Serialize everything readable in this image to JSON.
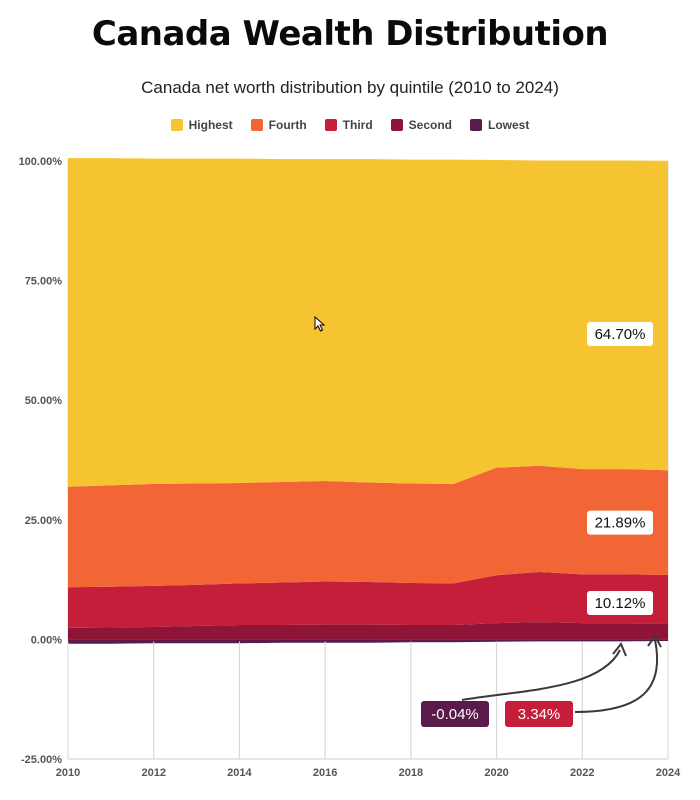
{
  "header": {
    "title": "Canada Wealth Distribution",
    "subtitle": "Canada net worth distribution by quintile (2010 to 2024)"
  },
  "chart_data": {
    "type": "area",
    "stacked": true,
    "x": [
      2010,
      2011,
      2012,
      2013,
      2014,
      2015,
      2016,
      2017,
      2018,
      2019,
      2020,
      2021,
      2022,
      2023,
      2024
    ],
    "x_ticks": [
      "2010",
      "2012",
      "2014",
      "2016",
      "2018",
      "2020",
      "2022",
      "2024"
    ],
    "y_ticks": [
      "100.00%",
      "75.00%",
      "50.00%",
      "25.00%",
      "0.00%",
      "-25.00%"
    ],
    "ylim": [
      -25,
      100
    ],
    "grid": "vertical",
    "legend_position": "top-center",
    "series": [
      {
        "name": "Lowest",
        "color": "#5a1a4a",
        "values": [
          -0.6,
          -0.6,
          -0.5,
          -0.5,
          -0.5,
          -0.4,
          -0.4,
          -0.4,
          -0.3,
          -0.3,
          -0.2,
          -0.1,
          -0.1,
          -0.1,
          -0.04
        ]
      },
      {
        "name": "Second",
        "color": "#8e1538",
        "values": [
          2.4,
          2.5,
          2.6,
          2.8,
          3.0,
          3.0,
          3.1,
          3.1,
          3.0,
          3.0,
          3.4,
          3.6,
          3.4,
          3.4,
          3.34
        ]
      },
      {
        "name": "Third",
        "color": "#c41e3a",
        "values": [
          8.5,
          8.5,
          8.6,
          8.6,
          8.7,
          8.9,
          9.0,
          8.9,
          8.8,
          8.7,
          10.0,
          10.5,
          10.2,
          10.2,
          10.12
        ]
      },
      {
        "name": "Fourth",
        "color": "#f26535",
        "values": [
          21.0,
          21.2,
          21.3,
          21.2,
          21.0,
          21.0,
          21.0,
          20.8,
          20.8,
          20.8,
          22.5,
          22.2,
          22.0,
          22.0,
          21.89
        ]
      },
      {
        "name": "Highest",
        "color": "#f6c331",
        "values": [
          68.7,
          68.4,
          68.0,
          67.9,
          67.8,
          67.5,
          67.3,
          67.6,
          67.7,
          67.8,
          64.3,
          63.8,
          64.5,
          64.5,
          64.7
        ]
      }
    ],
    "legend_order": [
      "Highest",
      "Fourth",
      "Third",
      "Second",
      "Lowest"
    ],
    "annotations": [
      {
        "text": "64.70%",
        "series": "Highest",
        "style": "white"
      },
      {
        "text": "21.89%",
        "series": "Fourth",
        "style": "white"
      },
      {
        "text": "10.12%",
        "series": "Third",
        "style": "white"
      },
      {
        "text": "-0.04%",
        "series": "Lowest",
        "style": "dark",
        "bg": "#5a1a4a"
      },
      {
        "text": "3.34%",
        "series": "Second",
        "style": "dark",
        "bg": "#c41e3a"
      }
    ],
    "grid_color": "#d9d9d9"
  }
}
